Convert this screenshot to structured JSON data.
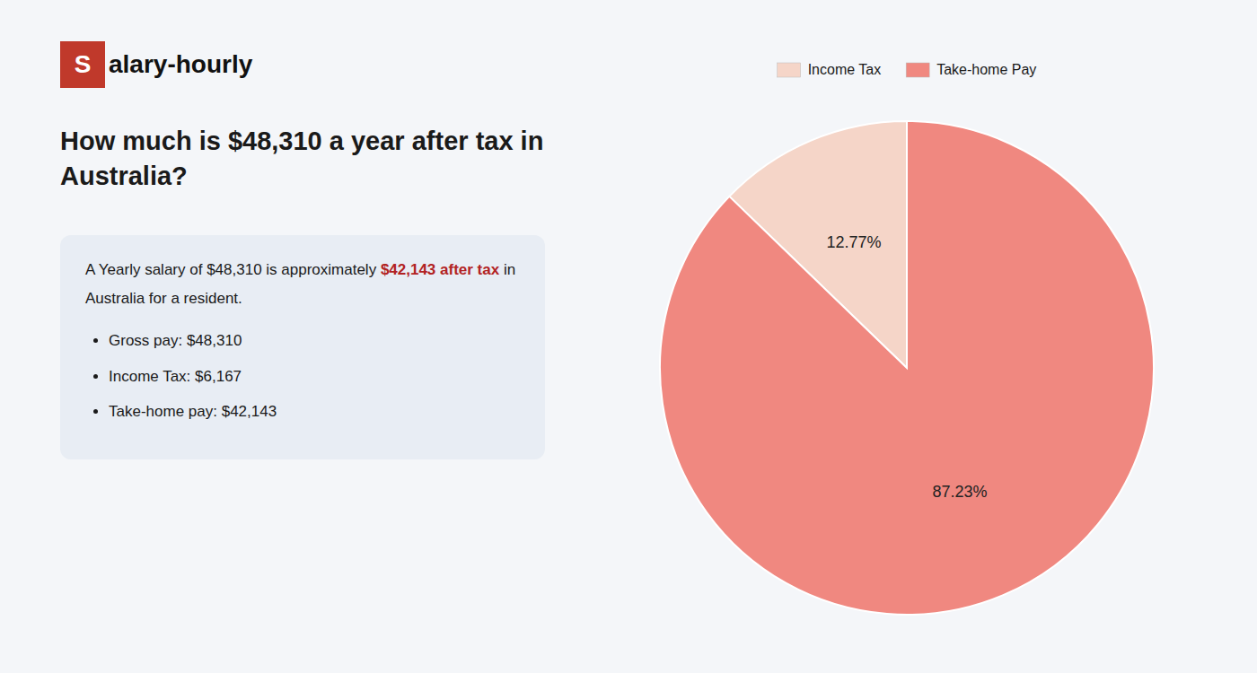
{
  "chart_data": {
    "type": "pie",
    "title": "How much is $48,310 a year after tax in Australia?",
    "categories": [
      "Income Tax",
      "Take-home Pay"
    ],
    "values": [
      12.77,
      87.23
    ],
    "value_labels": [
      "12.77%",
      "87.23%"
    ],
    "colors": [
      "#f5d5c8",
      "#f08880"
    ],
    "data_labels": true,
    "legend": "top",
    "annotations": [
      "S",
      "alary-hourly",
      "A Yearly salary of $48,310 is approximately ",
      "$42,143 after tax",
      " in",
      "Australia for a resident.",
      "Gross pay: $48,310",
      "Income Tax: $6,167",
      "Take-home pay: $42,143"
    ]
  }
}
